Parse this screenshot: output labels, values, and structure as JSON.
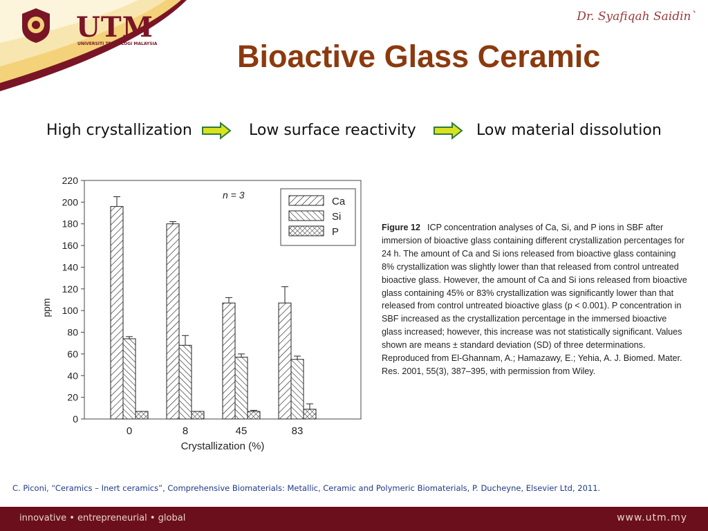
{
  "header": {
    "logo_text": "UTM",
    "logo_subtitle": "UNIVERSITI TEKNOLOGI MALAYSIA",
    "author": "Dr. Syafiqah Saidin`",
    "title": "Bioactive Glass Ceramic"
  },
  "flow": {
    "step1": "High crystallization",
    "step2": "Low surface reactivity",
    "step3": "Low material dissolution",
    "arrow_color": "#d9e21f",
    "arrow_outline": "#2f7a3a"
  },
  "chart_data": {
    "type": "bar",
    "xlabel": "Crystallization (%)",
    "ylabel": "ppm",
    "annotation": "n = 3",
    "ylim": [
      0,
      220
    ],
    "yticks": [
      0,
      20,
      40,
      60,
      80,
      100,
      120,
      140,
      160,
      180,
      200,
      220
    ],
    "categories": [
      "0",
      "8",
      "45",
      "83"
    ],
    "legend_position": "top-right",
    "series": [
      {
        "name": "Ca",
        "values": [
          196,
          180,
          107,
          107
        ],
        "errors": [
          9,
          2,
          5,
          15
        ],
        "pattern": "diagonal"
      },
      {
        "name": "Si",
        "values": [
          74,
          68,
          57,
          55
        ],
        "errors": [
          2,
          9,
          3,
          3
        ],
        "pattern": "back-diagonal"
      },
      {
        "name": "P",
        "values": [
          7,
          7,
          7,
          9
        ],
        "errors": [
          0,
          0,
          1,
          5
        ],
        "pattern": "crosshatch"
      }
    ]
  },
  "caption": {
    "label": "Figure 12",
    "text": "ICP concentration analyses of Ca, Si, and P ions in SBF after immersion of bioactive glass containing different crystallization percentages for 24 h. The amount of Ca and Si ions released from bioactive glass containing 8% crystallization was slightly lower than that released from control untreated bioactive glass. However, the amount of Ca and Si ions released from bioactive glass containing 45% or 83% crystallization was significantly lower than that released from control untreated bioactive glass (p < 0.001). P concentration in SBF increased as the crystallization percentage in the immersed bioactive glass increased; however, this increase was not statistically significant. Values shown are means ± standard deviation (SD) of three determinations. Reproduced from El-Ghannam, A.; Hamazawy, E.; Yehia, A. J. Biomed. Mater. Res. 2001, 55(3), 387–395, with permission from Wiley."
  },
  "reference": "C. Piconi, “Ceramics – Inert ceramics”, Comprehensive Biomaterials: Metallic, Ceramic and Polymeric Biomaterials, P. Ducheyne, Elsevier Ltd, 2011.",
  "footer": {
    "tagline": "innovative • entrepreneurial • global",
    "url": "www.utm.my"
  },
  "colors": {
    "brand_maroon": "#6b0f1c",
    "gold": "#e8b84a",
    "title_brown": "#8b3a0e"
  }
}
